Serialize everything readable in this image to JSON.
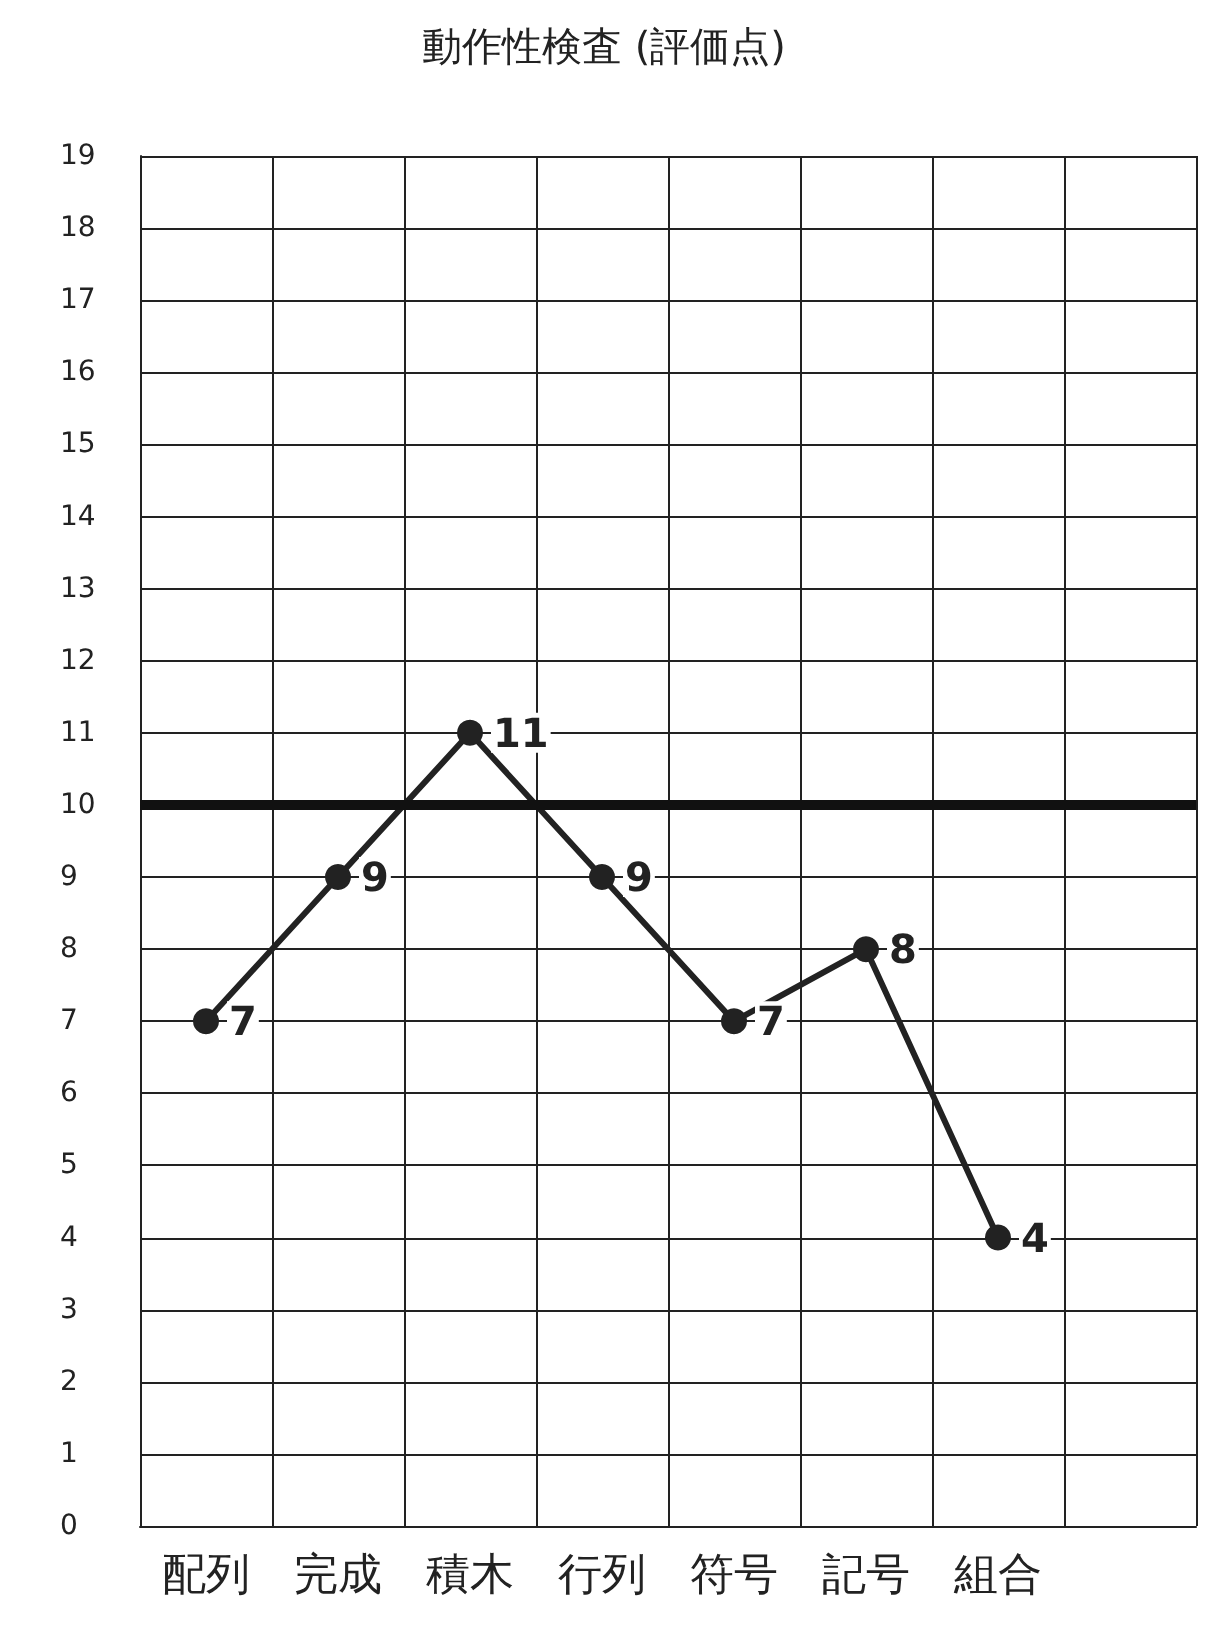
{
  "chart_data": {
    "type": "line",
    "title": "動作性検査 (評価点)",
    "categories": [
      "配列",
      "完成",
      "積木",
      "行列",
      "符号",
      "記号",
      "組合",
      null
    ],
    "series": [
      {
        "color": "#222222",
        "values": [
          7,
          9,
          11,
          9,
          7,
          8,
          4,
          null
        ]
      }
    ],
    "ylim": [
      0,
      19
    ],
    "yticks": [
      0,
      1,
      2,
      3,
      4,
      5,
      6,
      7,
      8,
      9,
      10,
      11,
      12,
      13,
      14,
      15,
      16,
      17,
      18,
      19
    ],
    "grid": true,
    "marker": "circle",
    "line_style": "solid",
    "data_labels": true,
    "ref_lines": [
      {
        "axis": "y",
        "value": 10,
        "color": "#111111",
        "line_style": "solid"
      }
    ]
  }
}
